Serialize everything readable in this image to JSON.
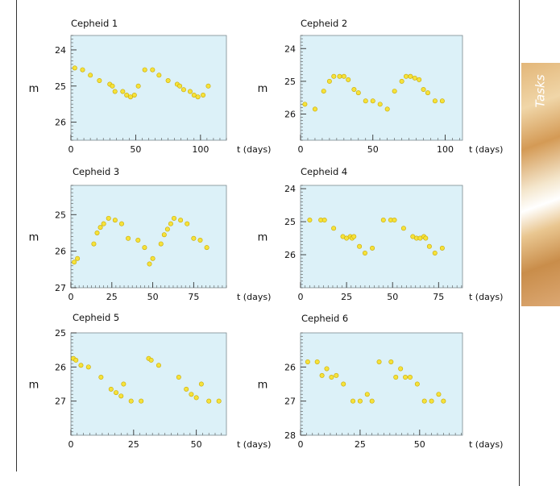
{
  "sidebar_tab": {
    "label": "Tasks"
  },
  "chart_data": [
    {
      "type": "scatter",
      "title": "Cepheid 1",
      "ylabel": "m",
      "xlabel": "t (days)",
      "xlim": [
        0,
        120
      ],
      "ylim": [
        23.6,
        26.5
      ],
      "y_inverted": true,
      "xticks": [
        0,
        50,
        100
      ],
      "yticks": [
        24,
        25,
        26
      ],
      "grid": false,
      "marker_color": "#f5e23a",
      "background": "#dcf1f8",
      "x": [
        3,
        9,
        15,
        22,
        30,
        32,
        34,
        40,
        43,
        46,
        49,
        52,
        57,
        63,
        68,
        75,
        82,
        84,
        87,
        92,
        95,
        98,
        102,
        106
      ],
      "y": [
        24.5,
        24.55,
        24.7,
        24.85,
        24.95,
        25.0,
        25.15,
        25.15,
        25.25,
        25.3,
        25.25,
        25.0,
        24.55,
        24.55,
        24.7,
        24.85,
        24.95,
        25.0,
        25.1,
        25.15,
        25.25,
        25.3,
        25.25,
        25.0
      ]
    },
    {
      "type": "scatter",
      "title": "Cepheid 2",
      "ylabel": "m",
      "xlabel": "t (days)",
      "xlim": [
        0,
        112
      ],
      "ylim": [
        23.6,
        26.8
      ],
      "y_inverted": true,
      "xticks": [
        0,
        50,
        100
      ],
      "yticks": [
        24,
        25,
        26
      ],
      "grid": false,
      "marker_color": "#f5e23a",
      "background": "#dcf1f8",
      "x": [
        3,
        10,
        16,
        20,
        23,
        27,
        30,
        33,
        37,
        40,
        45,
        50,
        55,
        60,
        65,
        70,
        73,
        76,
        79,
        82,
        85,
        88,
        93,
        98
      ],
      "y": [
        25.7,
        25.85,
        25.3,
        25.0,
        24.85,
        24.85,
        24.85,
        24.95,
        25.25,
        25.35,
        25.6,
        25.6,
        25.7,
        25.85,
        25.3,
        25.0,
        24.85,
        24.85,
        24.9,
        24.95,
        25.25,
        25.35,
        25.6,
        25.6
      ]
    },
    {
      "type": "scatter",
      "title": "Cepheid 3",
      "ylabel": "m",
      "xlabel": "t (days)",
      "xlim": [
        0,
        95
      ],
      "ylim": [
        24.2,
        27.0
      ],
      "y_inverted": true,
      "xticks": [
        0,
        25,
        50,
        75
      ],
      "yticks": [
        25,
        26,
        27
      ],
      "grid": false,
      "marker_color": "#f5e23a",
      "background": "#dcf1f8",
      "x": [
        2,
        4,
        14,
        16,
        18,
        20,
        23,
        27,
        31,
        35,
        41,
        45,
        48,
        50,
        55,
        57,
        59,
        61,
        63,
        67,
        71,
        75,
        79,
        83
      ],
      "y": [
        26.3,
        26.2,
        25.8,
        25.5,
        25.35,
        25.25,
        25.1,
        25.15,
        25.25,
        25.65,
        25.7,
        25.9,
        26.35,
        26.2,
        25.8,
        25.55,
        25.4,
        25.25,
        25.1,
        25.15,
        25.25,
        25.65,
        25.7,
        25.9
      ]
    },
    {
      "type": "scatter",
      "title": "Cepheid 4",
      "ylabel": "m",
      "xlabel": "t (days)",
      "xlim": [
        0,
        88
      ],
      "ylim": [
        23.9,
        27.0
      ],
      "y_inverted": true,
      "xticks": [
        0,
        25,
        50,
        75
      ],
      "yticks": [
        24,
        25,
        26
      ],
      "grid": false,
      "marker_color": "#f5e23a",
      "background": "#dcf1f8",
      "x": [
        5,
        11,
        13,
        18,
        23,
        25,
        27,
        28,
        29,
        32,
        35,
        39,
        45,
        49,
        51,
        56,
        61,
        63,
        65,
        67,
        68,
        70,
        73,
        77
      ],
      "y": [
        24.95,
        24.95,
        24.95,
        25.2,
        25.45,
        25.5,
        25.45,
        25.5,
        25.45,
        25.75,
        25.95,
        25.8,
        24.95,
        24.95,
        24.95,
        25.2,
        25.45,
        25.5,
        25.5,
        25.45,
        25.5,
        25.75,
        25.95,
        25.8
      ]
    },
    {
      "type": "scatter",
      "title": "Cepheid 5",
      "ylabel": "m",
      "xlabel": "t (days)",
      "xlim": [
        0,
        62
      ],
      "ylim": [
        25.0,
        28.0
      ],
      "y_inverted": true,
      "xticks": [
        0,
        25,
        50
      ],
      "yticks": [
        25,
        26,
        27
      ],
      "grid": false,
      "marker_color": "#f5e23a",
      "background": "#dcf1f8",
      "x": [
        1,
        2,
        4,
        7,
        12,
        16,
        18,
        20,
        21,
        24,
        28,
        31,
        32,
        35,
        43,
        46,
        48,
        50,
        52,
        55,
        59
      ],
      "y": [
        25.75,
        25.8,
        25.95,
        26.0,
        26.3,
        26.65,
        26.75,
        26.85,
        26.5,
        27.0,
        27.0,
        25.75,
        25.8,
        25.95,
        26.3,
        26.65,
        26.8,
        26.9,
        26.5,
        27.0,
        27.0
      ]
    },
    {
      "type": "scatter",
      "title": "Cepheid 6",
      "ylabel": "m",
      "xlabel": "t (days)",
      "xlim": [
        0,
        68
      ],
      "ylim": [
        25.0,
        28.0
      ],
      "y_inverted": true,
      "xticks": [
        0,
        25,
        50
      ],
      "yticks": [
        26,
        27,
        28
      ],
      "grid": false,
      "marker_color": "#f5e23a",
      "background": "#dcf1f8",
      "x": [
        3,
        7,
        9,
        11,
        13,
        15,
        18,
        22,
        25,
        28,
        30,
        33,
        38,
        40,
        42,
        44,
        46,
        49,
        52,
        55,
        58,
        60
      ],
      "y": [
        25.85,
        25.85,
        26.25,
        26.05,
        26.3,
        26.25,
        26.5,
        27.0,
        27.0,
        26.8,
        27.0,
        25.85,
        25.85,
        26.3,
        26.05,
        26.3,
        26.3,
        26.5,
        27.0,
        27.0,
        26.8,
        27.0
      ]
    }
  ]
}
